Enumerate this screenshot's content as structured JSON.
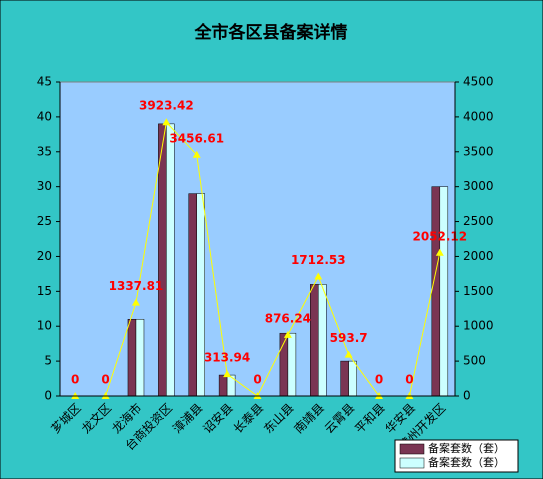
{
  "chart_data": {
    "type": "bar-line",
    "title": "全市各区县备案详情",
    "categories": [
      "芗城区",
      "龙文区",
      "龙海市",
      "台商投资区",
      "漳浦县",
      "诏安县",
      "长泰县",
      "东山县",
      "南靖县",
      "云霄县",
      "平和县",
      "华安县",
      "漳州开发区"
    ],
    "series": [
      {
        "name": "备案套数（套）",
        "color": "#7a3553",
        "values": [
          0,
          0,
          11,
          39,
          29,
          3,
          0,
          9,
          16,
          5,
          0,
          0,
          30
        ]
      },
      {
        "name": "备案套数（套）",
        "color": "#ccffff",
        "values": [
          0,
          0,
          11,
          39,
          29,
          3,
          0,
          9,
          16,
          5,
          0,
          0,
          30
        ]
      },
      {
        "type": "line",
        "axis": "y2",
        "color": "#ffff00",
        "values": [
          0,
          0,
          1337.81,
          3923.42,
          3456.61,
          313.94,
          0,
          876.24,
          1712.53,
          593.7,
          0,
          0,
          2052.12
        ]
      }
    ],
    "ylim": [
      0,
      45
    ],
    "yticks": [
      0,
      5,
      10,
      15,
      20,
      25,
      30,
      35,
      40,
      45
    ],
    "y2lim": [
      0,
      4500
    ],
    "y2ticks": [
      0,
      500,
      1000,
      1500,
      2000,
      2500,
      3000,
      3500,
      4000,
      4500
    ],
    "legend": "bottom-right"
  }
}
